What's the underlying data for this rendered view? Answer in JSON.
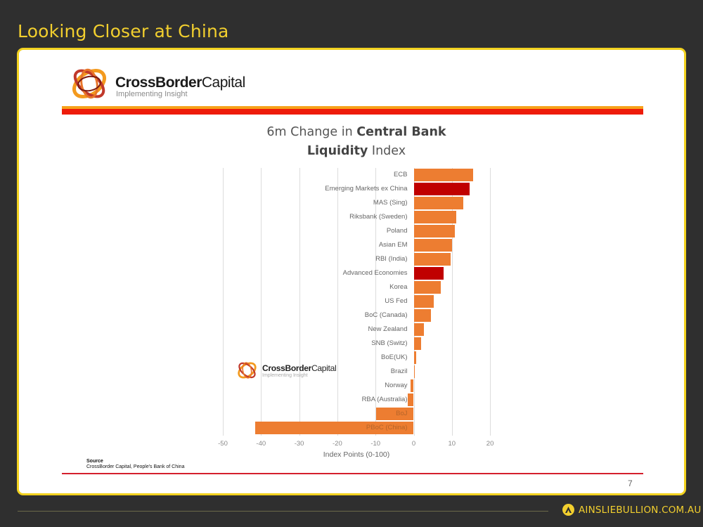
{
  "slide": {
    "title": "Looking Closer at China",
    "page_number": "7",
    "footer_brand": "AINSLIEBULLION.COM.AU"
  },
  "logo": {
    "name_bold": "CrossBorder",
    "name_regular": "Capital",
    "tagline": "Implementing Insight"
  },
  "colors": {
    "accent_yellow": "#f2cf2e",
    "bar_orange": "#ed7d31",
    "bar_red": "#c00000",
    "stripe_orange": "#f7a21b",
    "stripe_red": "#ee1c0a"
  },
  "chart_data": {
    "type": "bar",
    "orientation": "horizontal",
    "title": "6m Change in Central Bank Liquidity Index",
    "title_parts": {
      "line1_regular": "6m Change in ",
      "line1_bold": "Central Bank",
      "line2_bold": "Liquidity",
      "line2_regular": " Index"
    },
    "xlabel": "Index Points (0-100)",
    "ylabel": "",
    "xlim": [
      -50,
      20
    ],
    "x_ticks": [
      "-50",
      "-40",
      "-30",
      "-20",
      "-10",
      "0",
      "10",
      "20"
    ],
    "grid": "vertical",
    "legend": "none",
    "categories": [
      "ECB",
      "Emerging Markets ex China",
      "MAS (Sing)",
      "Riksbank (Sweden)",
      "Poland",
      "Asian EM",
      "RBI (India)",
      "Advanced Economies",
      "Korea",
      "US Fed",
      "BoC (Canada)",
      "New Zealand",
      "SNB (Switz)",
      "BoE(UK)",
      "Brazil",
      "Norway",
      "RBA (Australia)",
      "BoJ",
      "PBoC (China)"
    ],
    "values": [
      15.5,
      14.6,
      13.0,
      11.2,
      10.7,
      10.0,
      9.7,
      7.8,
      7.0,
      5.2,
      4.5,
      2.7,
      2.0,
      0.6,
      0.3,
      -0.8,
      -1.6,
      -9.9,
      -41.6
    ],
    "highlighted": [
      "Emerging Markets ex China",
      "Advanced Economies"
    ],
    "source_heading": "Source",
    "source_text": "CrossBorder Capital, People's Bank of China"
  }
}
